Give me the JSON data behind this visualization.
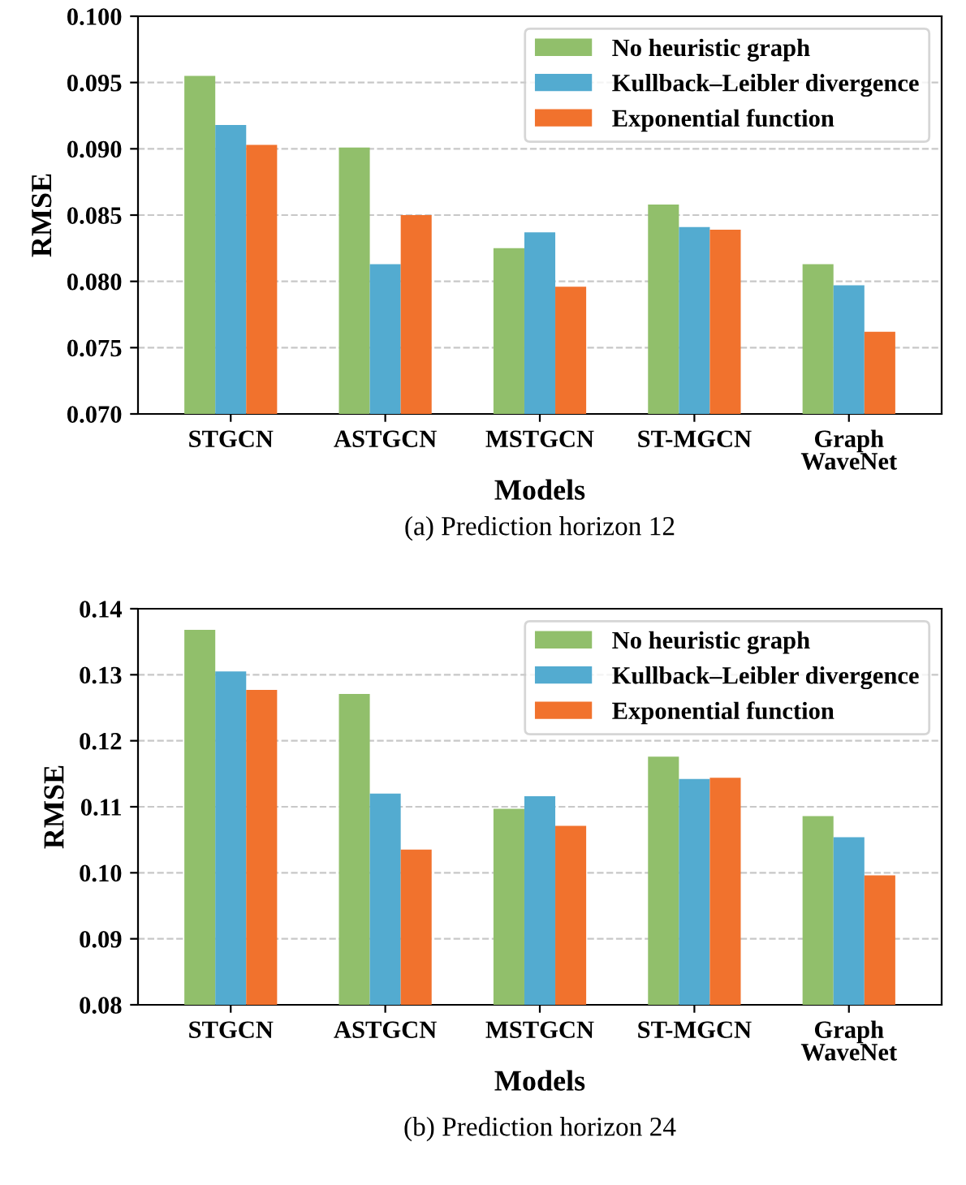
{
  "chart_data": [
    {
      "type": "bar",
      "xlabel": "Models",
      "ylabel": "RMSE",
      "annotations": [
        "(a) Prediction horizon 12"
      ],
      "categories": [
        "STGCN",
        "ASTGCN",
        "MSTGCN",
        "ST-MGCN",
        "Graph\nWaveNet"
      ],
      "series": [
        {
          "name": "No heuristic graph",
          "color": "#91bf6b",
          "values": [
            0.0955,
            0.0901,
            0.0825,
            0.0858,
            0.0813
          ]
        },
        {
          "name": "Kullback–Leibler divergence",
          "color": "#53abd0",
          "values": [
            0.0918,
            0.0813,
            0.0837,
            0.0841,
            0.0797
          ]
        },
        {
          "name": "Exponential function",
          "color": "#f1722d",
          "values": [
            0.0903,
            0.085,
            0.0796,
            0.0839,
            0.0762
          ]
        }
      ],
      "ylim": [
        0.07,
        0.1
      ],
      "yticks": [
        {
          "value": 0.07,
          "label": "0.070"
        },
        {
          "value": 0.075,
          "label": "0.075"
        },
        {
          "value": 0.08,
          "label": "0.080"
        },
        {
          "value": 0.085,
          "label": "0.085"
        },
        {
          "value": 0.09,
          "label": "0.090"
        },
        {
          "value": 0.095,
          "label": "0.095"
        },
        {
          "value": 0.1,
          "label": "0.100"
        }
      ],
      "grid": "y",
      "legend": "top right"
    },
    {
      "type": "bar",
      "xlabel": "Models",
      "ylabel": "RMSE",
      "annotations": [
        "(b) Prediction horizon 24"
      ],
      "categories": [
        "STGCN",
        "ASTGCN",
        "MSTGCN",
        "ST-MGCN",
        "Graph\nWaveNet"
      ],
      "series": [
        {
          "name": "No heuristic graph",
          "color": "#91bf6b",
          "values": [
            0.1368,
            0.1271,
            0.1097,
            0.1176,
            0.1086
          ]
        },
        {
          "name": "Kullback–Leibler divergence",
          "color": "#53abd0",
          "values": [
            0.1305,
            0.112,
            0.1116,
            0.1142,
            0.1054
          ]
        },
        {
          "name": "Exponential function",
          "color": "#f1722d",
          "values": [
            0.1277,
            0.1035,
            0.1071,
            0.1144,
            0.0996
          ]
        }
      ],
      "ylim": [
        0.08,
        0.14
      ],
      "yticks": [
        {
          "value": 0.08,
          "label": "0.08"
        },
        {
          "value": 0.09,
          "label": "0.09"
        },
        {
          "value": 0.1,
          "label": "0.10"
        },
        {
          "value": 0.11,
          "label": "0.11"
        },
        {
          "value": 0.12,
          "label": "0.12"
        },
        {
          "value": 0.13,
          "label": "0.13"
        },
        {
          "value": 0.14,
          "label": "0.14"
        }
      ],
      "grid": "y",
      "legend": "top right"
    }
  ]
}
